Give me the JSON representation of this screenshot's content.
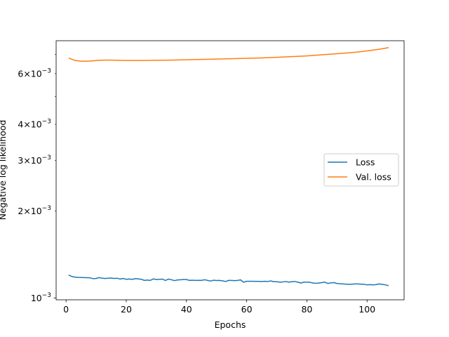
{
  "chart_data": {
    "type": "line",
    "title": "",
    "xlabel": "Epochs",
    "ylabel": "Negative log likelihood",
    "xlim": [
      -3.3,
      112.3
    ],
    "ylim": [
      0.000985,
      0.0078
    ],
    "yscale": "log",
    "grid": false,
    "legend_position": "center-right",
    "x_ticks": [
      0,
      20,
      40,
      60,
      80,
      100
    ],
    "x_tick_labels": [
      "0",
      "20",
      "40",
      "60",
      "80",
      "100"
    ],
    "y_major_ticks": [
      0.001
    ],
    "y_major_tick_labels": [
      "10^-3"
    ],
    "y_minor_ticks": [
      0.002,
      0.003,
      0.004,
      0.006
    ],
    "y_minor_tick_labels": [
      "2×10^-3",
      "3×10^-3",
      "4×10^-3",
      "6×10^-3"
    ],
    "y_minor_tick_marks": [
      0.002,
      0.003,
      0.004,
      0.005,
      0.006,
      0.007
    ],
    "series": [
      {
        "name": "Loss",
        "color": "#1f77b4",
        "x": [
          1,
          2,
          3,
          4,
          5,
          6,
          7,
          8,
          9,
          10,
          11,
          12,
          13,
          14,
          15,
          16,
          17,
          18,
          19,
          20,
          21,
          22,
          23,
          24,
          25,
          26,
          27,
          28,
          29,
          30,
          31,
          32,
          33,
          34,
          35,
          36,
          37,
          38,
          39,
          40,
          41,
          42,
          43,
          44,
          45,
          46,
          47,
          48,
          49,
          50,
          51,
          52,
          53,
          54,
          55,
          56,
          57,
          58,
          59,
          60,
          61,
          62,
          63,
          64,
          65,
          66,
          67,
          68,
          69,
          70,
          71,
          72,
          73,
          74,
          75,
          76,
          77,
          78,
          79,
          80,
          81,
          82,
          83,
          84,
          85,
          86,
          87,
          88,
          89,
          90,
          91,
          92,
          93,
          94,
          95,
          96,
          97,
          98,
          99,
          100,
          101,
          102,
          103,
          104,
          105,
          106,
          107
        ],
        "y": [
          0.001198,
          0.001186,
          0.00118,
          0.001178,
          0.001177,
          0.001176,
          0.001175,
          0.001174,
          0.001166,
          0.001168,
          0.001176,
          0.00117,
          0.001168,
          0.00117,
          0.001172,
          0.001168,
          0.00117,
          0.001162,
          0.001168,
          0.00116,
          0.001163,
          0.00116,
          0.001166,
          0.001164,
          0.00116,
          0.00115,
          0.001153,
          0.00115,
          0.001164,
          0.001158,
          0.00116,
          0.001162,
          0.00115,
          0.001162,
          0.001156,
          0.001148,
          0.001154,
          0.001156,
          0.001158,
          0.001158,
          0.00115,
          0.001152,
          0.00115,
          0.001151,
          0.00115,
          0.001156,
          0.00115,
          0.001144,
          0.001152,
          0.001149,
          0.00115,
          0.001146,
          0.00114,
          0.00115,
          0.00115,
          0.001148,
          0.00115,
          0.001155,
          0.001133,
          0.001142,
          0.001142,
          0.001142,
          0.001141,
          0.001141,
          0.00114,
          0.001142,
          0.00114,
          0.001145,
          0.001138,
          0.001138,
          0.001134,
          0.001136,
          0.00114,
          0.001134,
          0.001138,
          0.00114,
          0.001134,
          0.001126,
          0.001134,
          0.001134,
          0.001133,
          0.001126,
          0.001124,
          0.001126,
          0.00113,
          0.001134,
          0.001122,
          0.001128,
          0.00113,
          0.001122,
          0.00112,
          0.001118,
          0.001116,
          0.001114,
          0.001116,
          0.001118,
          0.001118,
          0.001116,
          0.001114,
          0.00111,
          0.001112,
          0.00111,
          0.001112,
          0.001118,
          0.001114,
          0.00111,
          0.001104
        ]
      },
      {
        "name": "Val. loss",
        "color": "#ff7f0e",
        "x": [
          1,
          3,
          5,
          7,
          9,
          11,
          13,
          15,
          17,
          20,
          25,
          30,
          35,
          40,
          45,
          50,
          55,
          60,
          65,
          70,
          75,
          80,
          85,
          90,
          95,
          100,
          103,
          105,
          107
        ],
        "y": [
          0.00678,
          0.00666,
          0.006625,
          0.006625,
          0.006645,
          0.006672,
          0.00668,
          0.00668,
          0.006672,
          0.006662,
          0.006662,
          0.00667,
          0.006682,
          0.0067,
          0.006718,
          0.006736,
          0.006758,
          0.00678,
          0.0068,
          0.00683,
          0.00687,
          0.00691,
          0.00697,
          0.00703,
          0.007095,
          0.00719,
          0.00726,
          0.007315,
          0.00738
        ]
      }
    ]
  }
}
